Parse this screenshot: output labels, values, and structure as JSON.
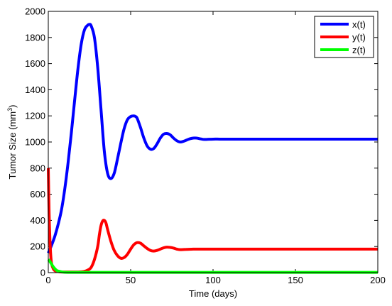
{
  "chart_data": {
    "type": "line",
    "title": "",
    "xlabel": "Time (days)",
    "ylabel": {
      "pre": "Tumor Size (mm",
      "sup": "3",
      "post": ")"
    },
    "xlim": [
      0,
      200
    ],
    "ylim": [
      0,
      2000
    ],
    "xticks": [
      0,
      50,
      100,
      150,
      200
    ],
    "yticks": [
      0,
      200,
      400,
      600,
      800,
      1000,
      1200,
      1400,
      1600,
      1800,
      2000
    ],
    "grid": false,
    "legend_position": "top-right",
    "series": [
      {
        "name": "x(t)",
        "color": "#0000ff",
        "x": [
          0,
          2,
          4,
          6,
          8,
          10,
          12,
          14,
          16,
          18,
          20,
          22,
          24,
          25,
          26,
          28,
          30,
          32,
          34,
          36,
          38,
          40,
          42,
          44,
          46,
          48,
          50,
          52,
          53,
          54,
          56,
          58,
          60,
          62,
          64,
          66,
          68,
          70,
          72,
          74,
          76,
          78,
          80,
          82,
          84,
          86,
          88,
          90,
          92,
          94,
          96,
          100,
          104,
          108,
          112,
          116,
          120,
          130,
          140,
          160,
          180,
          200
        ],
        "y": [
          150,
          210,
          280,
          370,
          480,
          640,
          840,
          1070,
          1320,
          1560,
          1750,
          1860,
          1895,
          1900,
          1890,
          1800,
          1570,
          1250,
          930,
          760,
          720,
          760,
          870,
          990,
          1100,
          1170,
          1195,
          1200,
          1195,
          1180,
          1110,
          1030,
          970,
          945,
          950,
          985,
          1030,
          1060,
          1065,
          1055,
          1030,
          1010,
          1000,
          1005,
          1015,
          1025,
          1030,
          1030,
          1025,
          1020,
          1020,
          1022,
          1022,
          1022,
          1022,
          1022,
          1022,
          1022,
          1022,
          1022,
          1022,
          1022
        ]
      },
      {
        "name": "y(t)",
        "color": "#ff0000",
        "x": [
          0,
          0.5,
          1,
          1.5,
          2,
          3,
          4,
          6,
          8,
          10,
          14,
          18,
          20,
          22,
          24,
          26,
          28,
          30,
          31,
          32,
          33,
          34,
          35,
          36,
          38,
          40,
          42,
          44,
          46,
          48,
          50,
          52,
          54,
          56,
          58,
          60,
          62,
          64,
          66,
          68,
          70,
          72,
          74,
          76,
          78,
          80,
          84,
          88,
          92,
          96,
          100,
          110,
          120,
          140,
          160,
          180,
          200
        ],
        "y": [
          800,
          450,
          250,
          130,
          70,
          30,
          15,
          8,
          5,
          5,
          5,
          5,
          6,
          10,
          20,
          40,
          100,
          200,
          290,
          360,
          395,
          400,
          380,
          330,
          240,
          170,
          130,
          110,
          115,
          140,
          180,
          215,
          230,
          225,
          205,
          185,
          170,
          165,
          170,
          180,
          190,
          195,
          193,
          188,
          180,
          176,
          178,
          180,
          180,
          180,
          180,
          180,
          180,
          180,
          180,
          180,
          180
        ]
      },
      {
        "name": "z(t)",
        "color": "#00ff00",
        "x": [
          0,
          0.5,
          1,
          2,
          3,
          4,
          5,
          6,
          8,
          10,
          15,
          20,
          50,
          100,
          150,
          200
        ],
        "y": [
          100,
          95,
          85,
          65,
          45,
          30,
          18,
          12,
          6,
          3,
          2,
          2,
          2,
          2,
          2,
          2
        ]
      }
    ]
  }
}
